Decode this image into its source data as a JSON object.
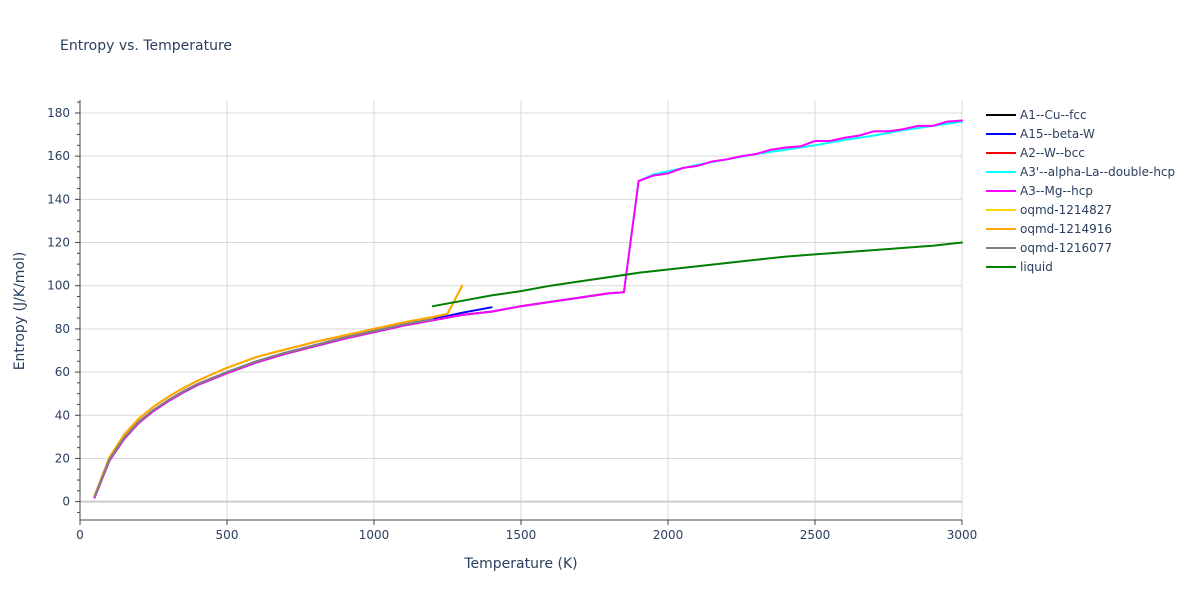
{
  "chart_data": {
    "type": "line",
    "title": "Entropy vs. Temperature",
    "xlabel": "Temperature (K)",
    "ylabel": "Entropy (J/K/mol)",
    "xlim": [
      0,
      3000
    ],
    "ylim": [
      -8.5,
      186
    ],
    "x_ticks": [
      0,
      500,
      1000,
      1500,
      2000,
      2500,
      3000
    ],
    "y_ticks": [
      0,
      20,
      40,
      60,
      80,
      100,
      120,
      140,
      160,
      180
    ],
    "grid": true,
    "legend_position": "right",
    "series": [
      {
        "name": "A1--Cu--fcc",
        "color": "#000000",
        "x": [
          50,
          100,
          150,
          200,
          250,
          300,
          350,
          400,
          500,
          600,
          700,
          800,
          900,
          1000,
          1100,
          1200,
          1300,
          1400,
          1500,
          1600,
          1700,
          1800,
          1850
        ],
        "y": [
          2,
          19,
          29,
          36.5,
          42,
          46.5,
          50.5,
          54,
          59.5,
          64.5,
          68.5,
          72,
          75.5,
          78.5,
          81.5,
          84,
          86.5,
          88,
          90.5,
          92.5,
          94.5,
          96.5,
          97
        ]
      },
      {
        "name": "A15--beta-W",
        "color": "#0000ff",
        "x": [
          50,
          100,
          150,
          200,
          250,
          300,
          350,
          400,
          500,
          600,
          700,
          800,
          900,
          1000,
          1100,
          1200,
          1300,
          1400
        ],
        "y": [
          2.5,
          19.5,
          29.5,
          37,
          42.5,
          47,
          51,
          54.5,
          60,
          65,
          69,
          72.5,
          76,
          79,
          82,
          84.5,
          87.5,
          90
        ]
      },
      {
        "name": "A2--W--bcc",
        "color": "#ff0000",
        "x": [
          50,
          100,
          150,
          200,
          250,
          300,
          350,
          400,
          500,
          600,
          700,
          800,
          900,
          1000,
          1100,
          1200,
          1300,
          1400,
          1500,
          1600,
          1700,
          1800,
          1850
        ],
        "y": [
          2,
          19,
          29,
          36.5,
          42,
          46.5,
          50.5,
          54,
          59.5,
          64.5,
          68.5,
          72,
          75.5,
          78.5,
          81.5,
          84,
          86.5,
          88,
          90.5,
          92.5,
          94.5,
          96.5,
          97
        ]
      },
      {
        "name": "A3'--alpha-La--double-hcp",
        "color": "#00ffff",
        "x": [
          50,
          100,
          150,
          200,
          250,
          300,
          350,
          400,
          500,
          600,
          700,
          800,
          900,
          1000,
          1100,
          1200,
          1300,
          1400,
          1500,
          1600,
          1700,
          1800,
          1850,
          1900,
          1950,
          2000,
          2100,
          2200,
          2300,
          2400,
          2500,
          2600,
          2700,
          2800,
          2900,
          3000
        ],
        "y": [
          2,
          19,
          29,
          36.5,
          42,
          46.5,
          50.5,
          54,
          59.5,
          64.5,
          68.5,
          72,
          75.5,
          78.5,
          81.5,
          84,
          86.5,
          88,
          90.5,
          92.5,
          94.5,
          96.5,
          97,
          148.5,
          151.5,
          153,
          156,
          158.5,
          161,
          163,
          165,
          167.5,
          169.5,
          172,
          174,
          176
        ]
      },
      {
        "name": "A3--Mg--hcp",
        "color": "#ff00ff",
        "x": [
          50,
          100,
          150,
          200,
          250,
          300,
          350,
          400,
          500,
          600,
          700,
          800,
          900,
          1000,
          1100,
          1200,
          1300,
          1400,
          1500,
          1600,
          1700,
          1800,
          1850,
          1900,
          1950,
          2000,
          2050,
          2100,
          2150,
          2200,
          2250,
          2300,
          2350,
          2400,
          2450,
          2500,
          2550,
          2600,
          2650,
          2700,
          2750,
          2800,
          2850,
          2900,
          2950,
          3000
        ],
        "y": [
          2,
          19,
          29,
          36.5,
          42,
          46.5,
          50.5,
          54,
          59.5,
          64.5,
          68.5,
          72,
          75.5,
          78.5,
          81.5,
          84,
          86.5,
          88,
          90.5,
          92.5,
          94.5,
          96.5,
          97,
          148.5,
          151,
          152,
          154.5,
          155.5,
          157.5,
          158.5,
          160,
          161,
          163,
          164,
          164.5,
          167,
          167,
          168.5,
          169.5,
          171.5,
          171.5,
          172.5,
          174,
          174,
          176,
          176.5
        ]
      },
      {
        "name": "oqmd-1214827",
        "color": "#ffd700",
        "x": [
          50,
          100,
          150,
          200,
          250,
          300,
          350,
          400,
          450,
          500,
          600,
          700,
          800,
          900,
          1000,
          1100,
          1200,
          1250,
          1300
        ],
        "y": [
          3,
          20.5,
          31,
          38.5,
          44,
          48.5,
          52.5,
          56,
          59,
          62,
          67,
          70.5,
          74,
          77,
          80,
          83,
          85.5,
          87,
          100
        ]
      },
      {
        "name": "oqmd-1214916",
        "color": "#ffa500",
        "x": [
          50,
          100,
          150,
          200,
          250,
          300,
          350,
          400,
          450,
          500,
          600,
          700,
          800,
          900,
          1000,
          1100,
          1200,
          1250,
          1300
        ],
        "y": [
          3,
          20.5,
          31,
          38.5,
          44,
          48.5,
          52.5,
          56,
          59,
          62,
          67,
          70.5,
          74,
          77,
          80,
          83,
          85.5,
          87,
          100
        ]
      },
      {
        "name": "oqmd-1216077",
        "color": "#808080",
        "x": [
          50,
          100,
          150,
          200,
          250,
          300,
          350,
          400,
          500,
          600,
          700,
          800,
          900,
          1000,
          1100,
          1200
        ],
        "y": [
          2.5,
          19.5,
          29.5,
          37,
          42.5,
          47,
          51,
          54.5,
          60,
          65,
          69,
          72.5,
          76,
          79,
          82,
          84.5
        ]
      },
      {
        "name": "liquid",
        "color": "#008000",
        "x": [
          1200,
          1300,
          1400,
          1500,
          1600,
          1700,
          1800,
          1900,
          2000,
          2100,
          2200,
          2300,
          2400,
          2500,
          2600,
          2700,
          2800,
          2900,
          3000
        ],
        "y": [
          90.5,
          93,
          95.5,
          97.5,
          100,
          102,
          104,
          106,
          107.5,
          109,
          110.5,
          112,
          113.5,
          114.5,
          115.5,
          116.5,
          117.5,
          118.5,
          120
        ]
      }
    ]
  }
}
